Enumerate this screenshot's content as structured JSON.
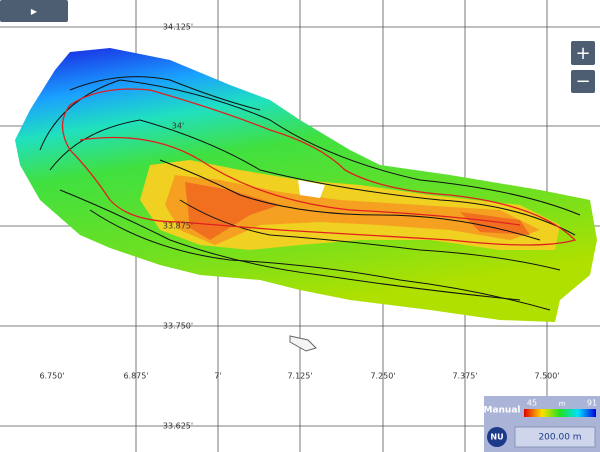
{
  "map": {
    "lat_labels": [
      "34.125'",
      "34'",
      "33.875'",
      "33.750'",
      "33.625'"
    ],
    "lon_labels": [
      "6.750'",
      "6.875'",
      "7'",
      "7.125'",
      "7.250'",
      "7.375'",
      "7.500'"
    ],
    "play_button": "▶",
    "zoom_in": "+",
    "zoom_out": "−",
    "legend": {
      "mode": "Manual",
      "min": "45",
      "unit": "m",
      "max": "91"
    },
    "compass": "NU",
    "scale": "200.00 m"
  }
}
